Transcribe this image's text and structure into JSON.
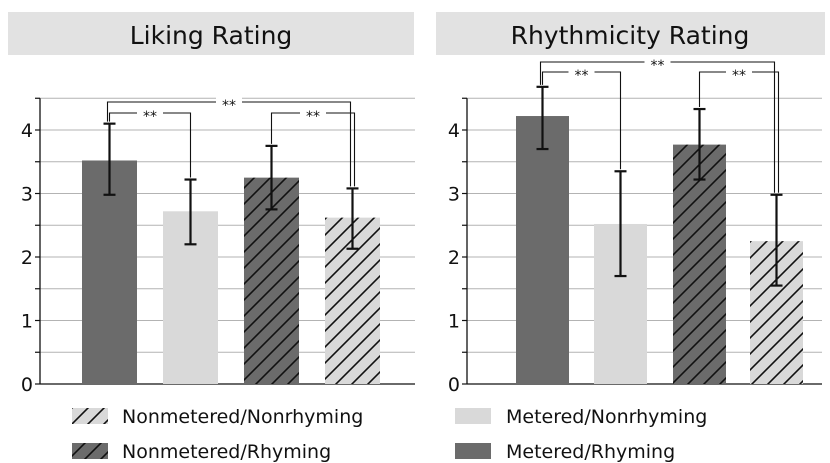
{
  "chart_data": [
    {
      "type": "bar",
      "title": "Liking Rating",
      "categories": [
        "Metered/Rhyming",
        "Metered/Nonrhyming",
        "Nonmetered/Rhyming",
        "Nonmetered/Nonrhyming"
      ],
      "values": [
        3.52,
        2.72,
        3.25,
        2.62
      ],
      "error_low": [
        2.98,
        2.2,
        2.75,
        2.13
      ],
      "error_high": [
        4.1,
        3.22,
        3.75,
        3.08
      ],
      "ylim": [
        0,
        4.5
      ],
      "yticks": [
        0,
        1,
        2,
        3,
        4
      ],
      "grid": true,
      "significance": [
        {
          "from": 0,
          "to": 1,
          "label": "**"
        },
        {
          "from": 0,
          "to": 3,
          "label": "**"
        },
        {
          "from": 2,
          "to": 3,
          "label": "**"
        }
      ]
    },
    {
      "type": "bar",
      "title": "Rhythmicity Rating",
      "categories": [
        "Metered/Rhyming",
        "Metered/Nonrhyming",
        "Nonmetered/Rhyming",
        "Nonmetered/Nonrhyming"
      ],
      "values": [
        4.22,
        2.52,
        3.77,
        2.25
      ],
      "error_low": [
        3.7,
        1.7,
        3.22,
        1.55
      ],
      "error_high": [
        4.68,
        3.35,
        4.33,
        2.98
      ],
      "ylim": [
        0,
        4.5
      ],
      "yticks": [
        0,
        1,
        2,
        3,
        4
      ],
      "grid": true,
      "significance": [
        {
          "from": 0,
          "to": 1,
          "label": "**"
        },
        {
          "from": 0,
          "to": 3,
          "label": "**"
        },
        {
          "from": 2,
          "to": 3,
          "label": "**"
        }
      ]
    }
  ],
  "legend": {
    "placement": "bottom",
    "items": [
      {
        "label": "Nonmetered/Nonrhyming",
        "style": "light-hatched"
      },
      {
        "label": "Metered/Nonrhyming",
        "style": "light-solid"
      },
      {
        "label": "Nonmetered/Rhyming",
        "style": "dark-hatched"
      },
      {
        "label": "Metered/Rhyming",
        "style": "dark-solid"
      }
    ]
  },
  "colors": {
    "dark": "#6b6b6b",
    "light": "#d9d9d9",
    "title_band": "#e2e2e2",
    "grid": "#b3b3b3",
    "ink": "#111111"
  }
}
